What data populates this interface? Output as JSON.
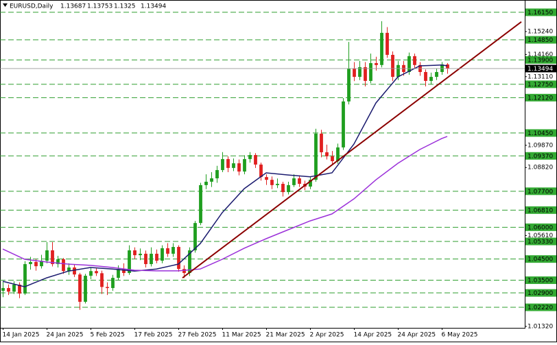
{
  "chart_data": {
    "type": "candlestick",
    "title": "EURUSD,Daily",
    "categories": [
      "14 Jan 2025",
      null,
      null,
      null,
      null,
      null,
      null,
      null,
      "24 Jan 2025",
      null,
      null,
      null,
      null,
      null,
      null,
      null,
      "5 Feb 2025",
      null,
      null,
      null,
      null,
      null,
      null,
      null,
      "17 Feb 2025",
      null,
      null,
      null,
      null,
      null,
      null,
      null,
      "27 Feb 2025",
      null,
      null,
      null,
      null,
      null,
      null,
      null,
      "11 Mar 2025",
      null,
      null,
      null,
      null,
      null,
      null,
      null,
      "21 Mar 2025",
      null,
      null,
      null,
      null,
      null,
      null,
      null,
      "2 Apr 2025",
      null,
      null,
      null,
      null,
      null,
      null,
      null,
      "14 Apr 2025",
      null,
      null,
      null,
      null,
      null,
      null,
      null,
      "24 Apr 2025",
      null,
      null,
      null,
      null,
      null,
      null,
      null,
      "6 May 2025",
      null
    ],
    "series": [
      {
        "up_color": "#1f9e1f",
        "down_color": "#e02020",
        "open": [
          1.03,
          1.0313,
          1.0296,
          1.0329,
          1.0287,
          1.0426,
          1.0436,
          1.0416,
          1.0442,
          1.0491,
          1.0426,
          1.0449,
          1.0393,
          1.041,
          1.0377,
          1.0248,
          1.0371,
          1.0393,
          1.0383,
          1.0318,
          1.0313,
          1.0361,
          1.0403,
          1.0384,
          1.0491,
          1.0468,
          1.0475,
          1.0426,
          1.0475,
          1.0442,
          1.0501,
          1.0475,
          1.0507,
          1.0403,
          1.0384,
          1.0491,
          1.062,
          1.0799,
          1.0815,
          1.0831,
          1.087,
          1.0922,
          1.088,
          1.0902,
          1.0863,
          1.0922,
          1.0941,
          1.0896,
          1.0837,
          1.0824,
          1.0799,
          1.0805,
          1.0766,
          1.0799,
          1.0831,
          1.0805,
          1.0792,
          1.0824,
          1.1042,
          1.0954,
          1.0935,
          1.0912,
          1.0977,
          1.1194,
          1.1349,
          1.131,
          1.1356,
          1.1291,
          1.1375,
          1.1366,
          1.1518,
          1.1414,
          1.131,
          1.1366,
          1.1333,
          1.1408,
          1.1366,
          1.1333,
          1.1291,
          1.131,
          1.1333,
          1.13687
        ],
        "high": [
          1.0345,
          1.033,
          1.0345,
          1.034,
          1.044,
          1.046,
          1.045,
          1.047,
          1.053,
          1.053,
          1.0465,
          1.0455,
          1.043,
          1.0425,
          1.0385,
          1.038,
          1.041,
          1.0405,
          1.0395,
          1.034,
          1.0375,
          1.042,
          1.043,
          1.0515,
          1.0505,
          1.05,
          1.049,
          1.0505,
          1.0495,
          1.0515,
          1.0525,
          1.0525,
          1.0515,
          1.042,
          1.0505,
          1.063,
          1.081,
          1.085,
          1.086,
          1.089,
          1.0955,
          1.0935,
          1.0925,
          1.092,
          1.094,
          1.0955,
          1.095,
          1.0905,
          1.085,
          1.084,
          1.083,
          1.0815,
          1.0815,
          1.085,
          1.0845,
          1.082,
          1.084,
          1.1065,
          1.106,
          1.099,
          1.096,
          1.0995,
          1.121,
          1.1475,
          1.138,
          1.1385,
          1.138,
          1.142,
          1.1405,
          1.1573,
          1.1545,
          1.143,
          1.1385,
          1.1385,
          1.1425,
          1.142,
          1.138,
          1.1345,
          1.133,
          1.135,
          1.138,
          1.13753
        ],
        "low": [
          1.027,
          1.028,
          1.0285,
          1.0265,
          1.028,
          1.04,
          1.0395,
          1.0405,
          1.043,
          1.0415,
          1.041,
          1.038,
          1.0375,
          1.0365,
          1.021,
          1.024,
          1.0355,
          1.037,
          1.0285,
          1.028,
          1.03,
          1.035,
          1.037,
          1.0375,
          1.045,
          1.0445,
          1.041,
          1.0415,
          1.043,
          1.043,
          1.046,
          1.046,
          1.039,
          1.036,
          1.037,
          1.048,
          1.061,
          1.078,
          1.079,
          1.081,
          1.086,
          1.086,
          1.0865,
          1.0845,
          1.085,
          1.0905,
          1.088,
          1.082,
          1.08,
          1.078,
          1.0785,
          1.0745,
          1.0755,
          1.079,
          1.079,
          1.0775,
          1.078,
          1.0815,
          1.093,
          1.092,
          1.0895,
          1.09,
          1.0965,
          1.118,
          1.129,
          1.1295,
          1.1265,
          1.128,
          1.134,
          1.1355,
          1.14,
          1.129,
          1.1295,
          1.1315,
          1.132,
          1.135,
          1.1315,
          1.1265,
          1.1275,
          1.1295,
          1.132,
          1.1325
        ],
        "close": [
          1.0313,
          1.0296,
          1.0329,
          1.0287,
          1.0426,
          1.0436,
          1.0416,
          1.0442,
          1.0491,
          1.0426,
          1.0449,
          1.0393,
          1.041,
          1.0377,
          1.0248,
          1.0371,
          1.0393,
          1.0383,
          1.0318,
          1.0313,
          1.0361,
          1.0403,
          1.0384,
          1.0491,
          1.0468,
          1.0475,
          1.0426,
          1.0475,
          1.0442,
          1.0501,
          1.0475,
          1.0507,
          1.0403,
          1.0384,
          1.0491,
          1.062,
          1.0799,
          1.0815,
          1.0831,
          1.087,
          1.0922,
          1.088,
          1.0902,
          1.0863,
          1.0922,
          1.0941,
          1.0896,
          1.0837,
          1.0824,
          1.0799,
          1.0805,
          1.0766,
          1.0799,
          1.0831,
          1.0805,
          1.0792,
          1.0824,
          1.1042,
          1.0954,
          1.0935,
          1.0912,
          1.0977,
          1.1194,
          1.1349,
          1.131,
          1.1356,
          1.1291,
          1.1375,
          1.1366,
          1.1518,
          1.1414,
          1.131,
          1.1366,
          1.1333,
          1.1408,
          1.1366,
          1.1333,
          1.1291,
          1.131,
          1.1333,
          1.13687,
          1.13494
        ]
      }
    ],
    "moving_averages": [
      {
        "color": "#1a1a6e",
        "x": [
          0,
          4,
          8,
          12,
          16,
          20,
          24,
          28,
          32,
          36,
          40,
          44,
          48,
          52,
          56,
          60,
          64,
          68,
          72,
          76,
          80,
          81
        ],
        "values": [
          1.0345,
          1.0319,
          1.0361,
          1.0393,
          1.041,
          1.0403,
          1.0393,
          1.0403,
          1.0426,
          1.0523,
          1.0669,
          1.0782,
          1.0857,
          1.0847,
          1.0838,
          1.0857,
          1.0993,
          1.1187,
          1.131,
          1.1362,
          1.1366,
          1.1362
        ]
      },
      {
        "color": "#9b30d9",
        "x": [
          0,
          4,
          8,
          12,
          16,
          20,
          24,
          28,
          32,
          36,
          40,
          44,
          48,
          52,
          56,
          60,
          64,
          68,
          72,
          76,
          80,
          81
        ],
        "values": [
          1.0497,
          1.0449,
          1.0436,
          1.0426,
          1.042,
          1.041,
          1.0397,
          1.0394,
          1.0394,
          1.0403,
          1.0449,
          1.0501,
          1.0546,
          1.0588,
          1.063,
          1.0663,
          1.0734,
          1.0824,
          1.0902,
          1.0967,
          1.1019,
          1.1029
        ]
      }
    ],
    "trendline": {
      "color": "#8b0000",
      "x": [
        32.75,
        94.5
      ],
      "values": [
        1.0361,
        1.157
      ]
    },
    "levels": {
      "color": "#2e9e2e",
      "label_color": "#33aa33",
      "values": [
        {
          "value": 1.1615,
          "label": "1.16150"
        },
        {
          "value": 1.1485,
          "label": "1.14850"
        },
        {
          "value": 1.139,
          "label": "1.13900"
        },
        {
          "value": 1.1275,
          "label": "1.12750"
        },
        {
          "value": 1.1212,
          "label": "1.12120"
        },
        {
          "value": 1.1045,
          "label": "1.10450"
        },
        {
          "value": 1.0937,
          "label": "1.09370"
        },
        {
          "value": 1.077,
          "label": "1.07700"
        },
        {
          "value": 1.0681,
          "label": "1.06810"
        },
        {
          "value": 1.06,
          "label": "1.06000"
        },
        {
          "value": 1.0533,
          "label": "1.05330"
        },
        {
          "value": 1.045,
          "label": "1.04500"
        },
        {
          "value": 1.035,
          "label": "1.03500"
        },
        {
          "value": 1.029,
          "label": "1.02900"
        },
        {
          "value": 1.0222,
          "label": "1.02220"
        }
      ]
    },
    "xlim": [
      -0.5,
      95.125
    ],
    "ylim": [
      1.0125,
      1.1673
    ],
    "yticks": [
      {
        "value": 1.1524,
        "label": "1.15240"
      },
      {
        "value": 1.1416,
        "label": "1.14160"
      },
      {
        "value": 1.1311,
        "label": "1.13110"
      },
      {
        "value": 1.0987,
        "label": "1.09870"
      },
      {
        "value": 1.0882,
        "label": "1.08820"
      },
      {
        "value": 1.0561,
        "label": "1.05610"
      },
      {
        "value": 1.0132,
        "label": "1.01320"
      }
    ]
  }
}
